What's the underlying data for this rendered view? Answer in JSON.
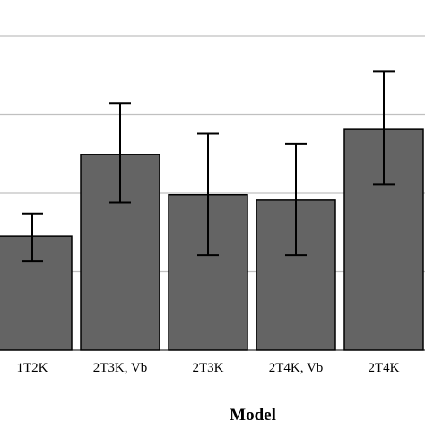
{
  "chart_data": {
    "type": "bar",
    "categories": [
      "1T2K",
      "2T3K, Vb",
      "2T3K",
      "2T4K, Vb",
      "2T4K"
    ],
    "values": [
      1.45,
      2.49,
      1.98,
      1.91,
      2.81
    ],
    "error_low": [
      1.13,
      1.88,
      1.21,
      1.21,
      2.11
    ],
    "error_high": [
      1.74,
      3.14,
      2.76,
      2.63,
      3.55
    ],
    "xlabel": "Model",
    "ylabel": "",
    "title": "",
    "ylim": [
      0,
      4.0
    ],
    "yticks": [
      1,
      2,
      3
    ],
    "grid": true,
    "bar_color": "#646464",
    "bar_edge_color": "#000000",
    "grid_color": "#c0c0c0"
  }
}
